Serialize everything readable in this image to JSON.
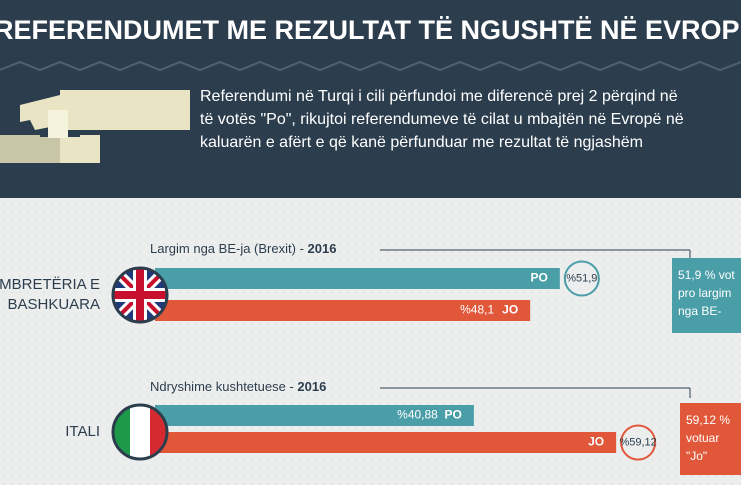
{
  "header": {
    "title": "REFERENDUMET ME REZULTAT TË NGUSHTË NË EVROPË",
    "intro": [
      "Referendumi në Turqi i cili përfundoi me diferencë prej 2 përqind në",
      "të votës \"Po\", rikujtoi referendumeve të cilat u mbajtën në Evropë në",
      "kaluarën e afërt e që kanë përfunduar me rezultat të ngjashëm"
    ]
  },
  "chart_data": [
    {
      "type": "bar",
      "title": "Largim nga BE-ja (Brexit)",
      "year": "2016",
      "country": [
        "MBRETËRIA E",
        "BASHKUARA"
      ],
      "series": [
        {
          "name": "PO",
          "color": "#4a9ea8",
          "values": [
            51.9
          ],
          "value_labels": [
            "%51,9"
          ]
        },
        {
          "name": "JO",
          "color": "#e0573a",
          "values": [
            48.1
          ],
          "value_labels": [
            "%48,1"
          ]
        }
      ],
      "note": [
        "51,9 % vot",
        "pro largim",
        "nga BE-"
      ],
      "note_color": "#4a9ea8"
    },
    {
      "type": "bar",
      "title": "Ndryshime kushtetuese",
      "year": "2016",
      "country": [
        "ITALI"
      ],
      "series": [
        {
          "name": "PO",
          "color": "#4a9ea8",
          "values": [
            40.88
          ],
          "value_labels": [
            "%40,88"
          ]
        },
        {
          "name": "JO",
          "color": "#e0573a",
          "values": [
            59.12
          ],
          "value_labels": [
            "%59,12"
          ]
        }
      ],
      "note": [
        "59,12 %",
        "votuar",
        "\"Jo\""
      ],
      "note_color": "#e0573a"
    }
  ]
}
